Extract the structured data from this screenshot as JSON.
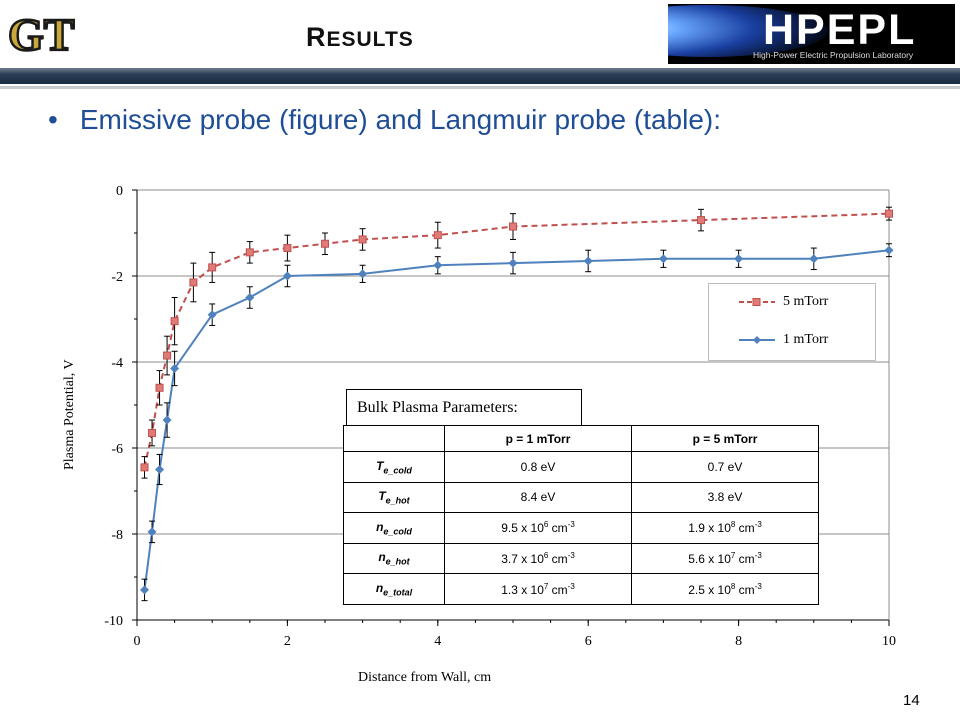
{
  "slide": {
    "title_initial": "R",
    "title_rest": "ESULTS",
    "bullet": "Emissive probe (figure) and Langmuir probe (table):",
    "page_number": "14",
    "logo_left_text": "GT",
    "logo_right_text": "HPEPL",
    "logo_right_subtitle": "High-Power Electric Propulsion Laboratory"
  },
  "chart_data": {
    "type": "line",
    "xlabel": "Distance from Wall, cm",
    "ylabel": "Plasma Potential, V",
    "xlim": [
      0,
      10
    ],
    "ylim": [
      -10,
      0
    ],
    "xticks": [
      0,
      2,
      4,
      6,
      8,
      10
    ],
    "yticks": [
      0,
      -2,
      -4,
      -6,
      -8,
      -10
    ],
    "legend_position": "right",
    "series": [
      {
        "name": "5 mTorr",
        "color": "#c0504d",
        "style": "dashed",
        "marker": "square",
        "x": [
          0.1,
          0.2,
          0.3,
          0.4,
          0.5,
          0.75,
          1.0,
          1.5,
          2.0,
          2.5,
          3.0,
          4.0,
          5.0,
          7.5,
          10.0
        ],
        "y": [
          -6.45,
          -5.65,
          -4.6,
          -3.85,
          -3.05,
          -2.15,
          -1.8,
          -1.45,
          -1.35,
          -1.25,
          -1.15,
          -1.05,
          -0.85,
          -0.7,
          -0.55
        ],
        "err": [
          0.25,
          0.3,
          0.4,
          0.45,
          0.55,
          0.45,
          0.35,
          0.25,
          0.3,
          0.25,
          0.25,
          0.3,
          0.3,
          0.25,
          0.15
        ]
      },
      {
        "name": "1 mTorr",
        "color": "#4f81bd",
        "style": "solid",
        "marker": "diamond",
        "x": [
          0.1,
          0.2,
          0.3,
          0.4,
          0.5,
          1.0,
          1.5,
          2.0,
          3.0,
          4.0,
          5.0,
          6.0,
          7.0,
          8.0,
          9.0,
          10.0
        ],
        "y": [
          -9.3,
          -7.95,
          -6.5,
          -5.35,
          -4.15,
          -2.9,
          -2.5,
          -2.0,
          -1.95,
          -1.75,
          -1.7,
          -1.65,
          -1.6,
          -1.6,
          -1.6,
          -1.4
        ],
        "err": [
          0.25,
          0.25,
          0.35,
          0.4,
          0.4,
          0.25,
          0.25,
          0.25,
          0.2,
          0.2,
          0.25,
          0.25,
          0.2,
          0.2,
          0.25,
          0.15
        ]
      }
    ]
  },
  "table": {
    "title": "Bulk Plasma Parameters:",
    "col1": "p = 1 mTorr",
    "col2": "p = 5 mTorr",
    "rows": [
      {
        "name": "T",
        "sub": "e_cold",
        "v1": "0.8 eV",
        "v2": "0.7 eV"
      },
      {
        "name": "T",
        "sub": "e_hot",
        "v1": "8.4 eV",
        "v2": "3.8 eV"
      },
      {
        "name": "n",
        "sub": "e_cold",
        "v1_m": "9.5 x 10",
        "v1_e": "6",
        "v1_u": " cm",
        "v1_s": "-3",
        "v2_m": "1.9 x 10",
        "v2_e": "8",
        "v2_u": " cm",
        "v2_s": "-3"
      },
      {
        "name": "n",
        "sub": "e_hot",
        "v1_m": "3.7 x 10",
        "v1_e": "6",
        "v1_u": " cm",
        "v1_s": "-3",
        "v2_m": "5.6 x 10",
        "v2_e": "7",
        "v2_u": " cm",
        "v2_s": "-3"
      },
      {
        "name": "n",
        "sub": "e_total",
        "v1_m": "1.3 x 10",
        "v1_e": "7",
        "v1_u": " cm",
        "v1_s": "-3",
        "v2_m": "2.5 x 10",
        "v2_e": "8",
        "v2_u": " cm",
        "v2_s": "-3"
      }
    ]
  }
}
